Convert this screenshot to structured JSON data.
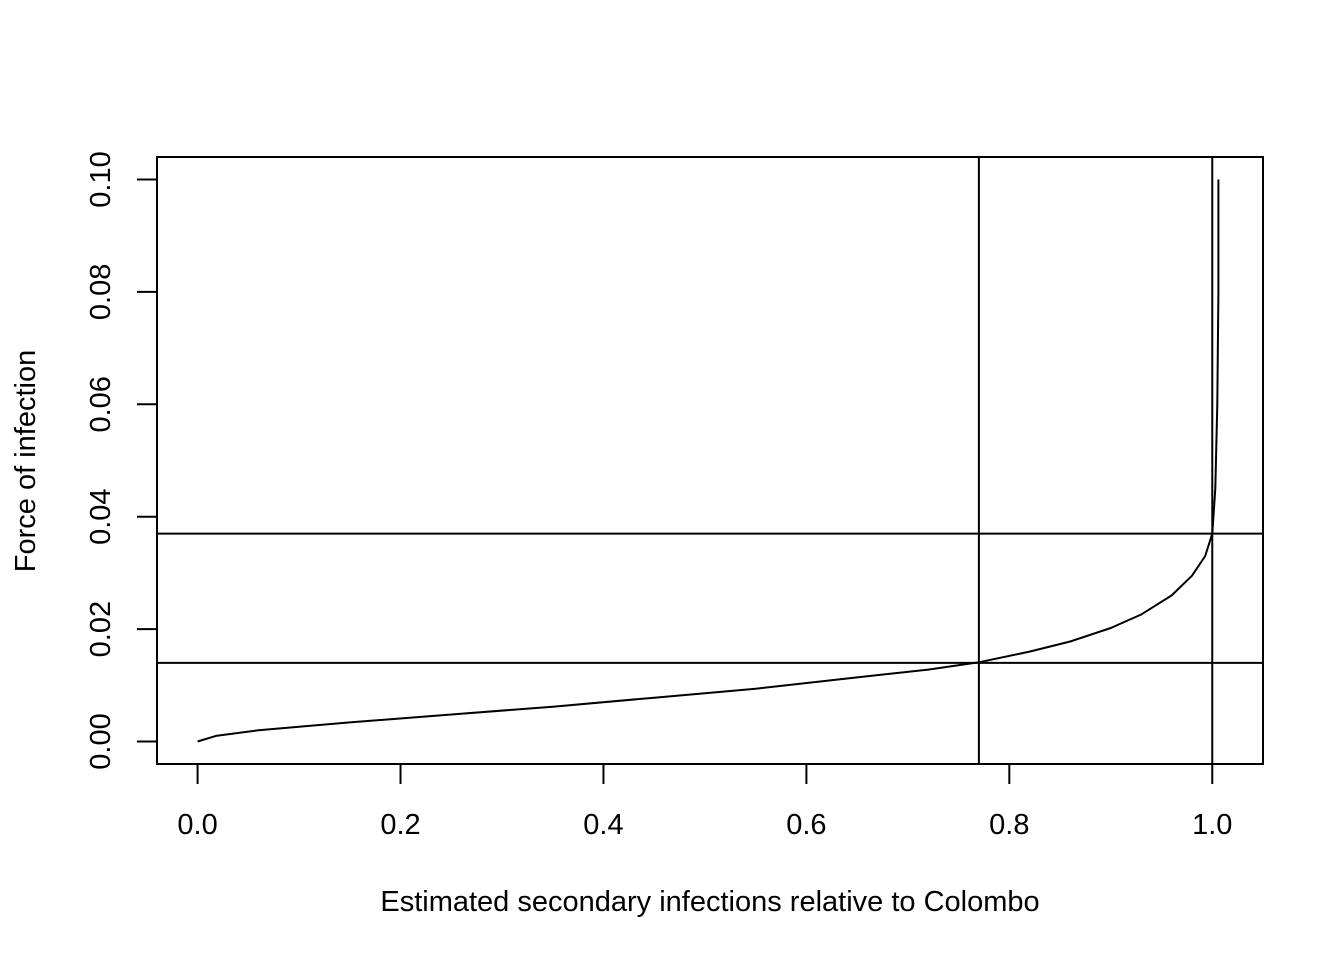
{
  "chart_data": {
    "type": "line",
    "title": "",
    "xlabel": "Estimated secondary infections relative to Colombo",
    "ylabel": "Force of infection",
    "xlim": [
      -0.04,
      1.05
    ],
    "ylim": [
      -0.004,
      0.104
    ],
    "grid": false,
    "x_ticks": [
      0.0,
      0.2,
      0.4,
      0.6,
      0.8,
      1.0
    ],
    "x_tick_labels": [
      "0.0",
      "0.2",
      "0.4",
      "0.6",
      "0.8",
      "1.0"
    ],
    "y_ticks": [
      0.0,
      0.02,
      0.04,
      0.06,
      0.08,
      0.1
    ],
    "y_tick_labels": [
      "0.00",
      "0.02",
      "0.04",
      "0.06",
      "0.08",
      "0.10"
    ],
    "series": [
      {
        "x": [
          0.0,
          0.018,
          0.06,
          0.15,
          0.25,
          0.35,
          0.45,
          0.55,
          0.65,
          0.72,
          0.77,
          0.82,
          0.86,
          0.9,
          0.93,
          0.96,
          0.98,
          0.993,
          1.0,
          1.003,
          1.005,
          1.006,
          1.006
        ],
        "y": [
          0.0,
          0.001,
          0.002,
          0.0034,
          0.0048,
          0.0062,
          0.0078,
          0.0094,
          0.0114,
          0.0128,
          0.0141,
          0.016,
          0.0178,
          0.0202,
          0.0226,
          0.026,
          0.0295,
          0.033,
          0.037,
          0.045,
          0.06,
          0.08,
          0.1
        ]
      }
    ],
    "reference_lines": {
      "vertical_x": [
        0.77,
        1.0
      ],
      "horizontal_y": [
        0.014,
        0.037
      ]
    },
    "color": "#000000"
  }
}
